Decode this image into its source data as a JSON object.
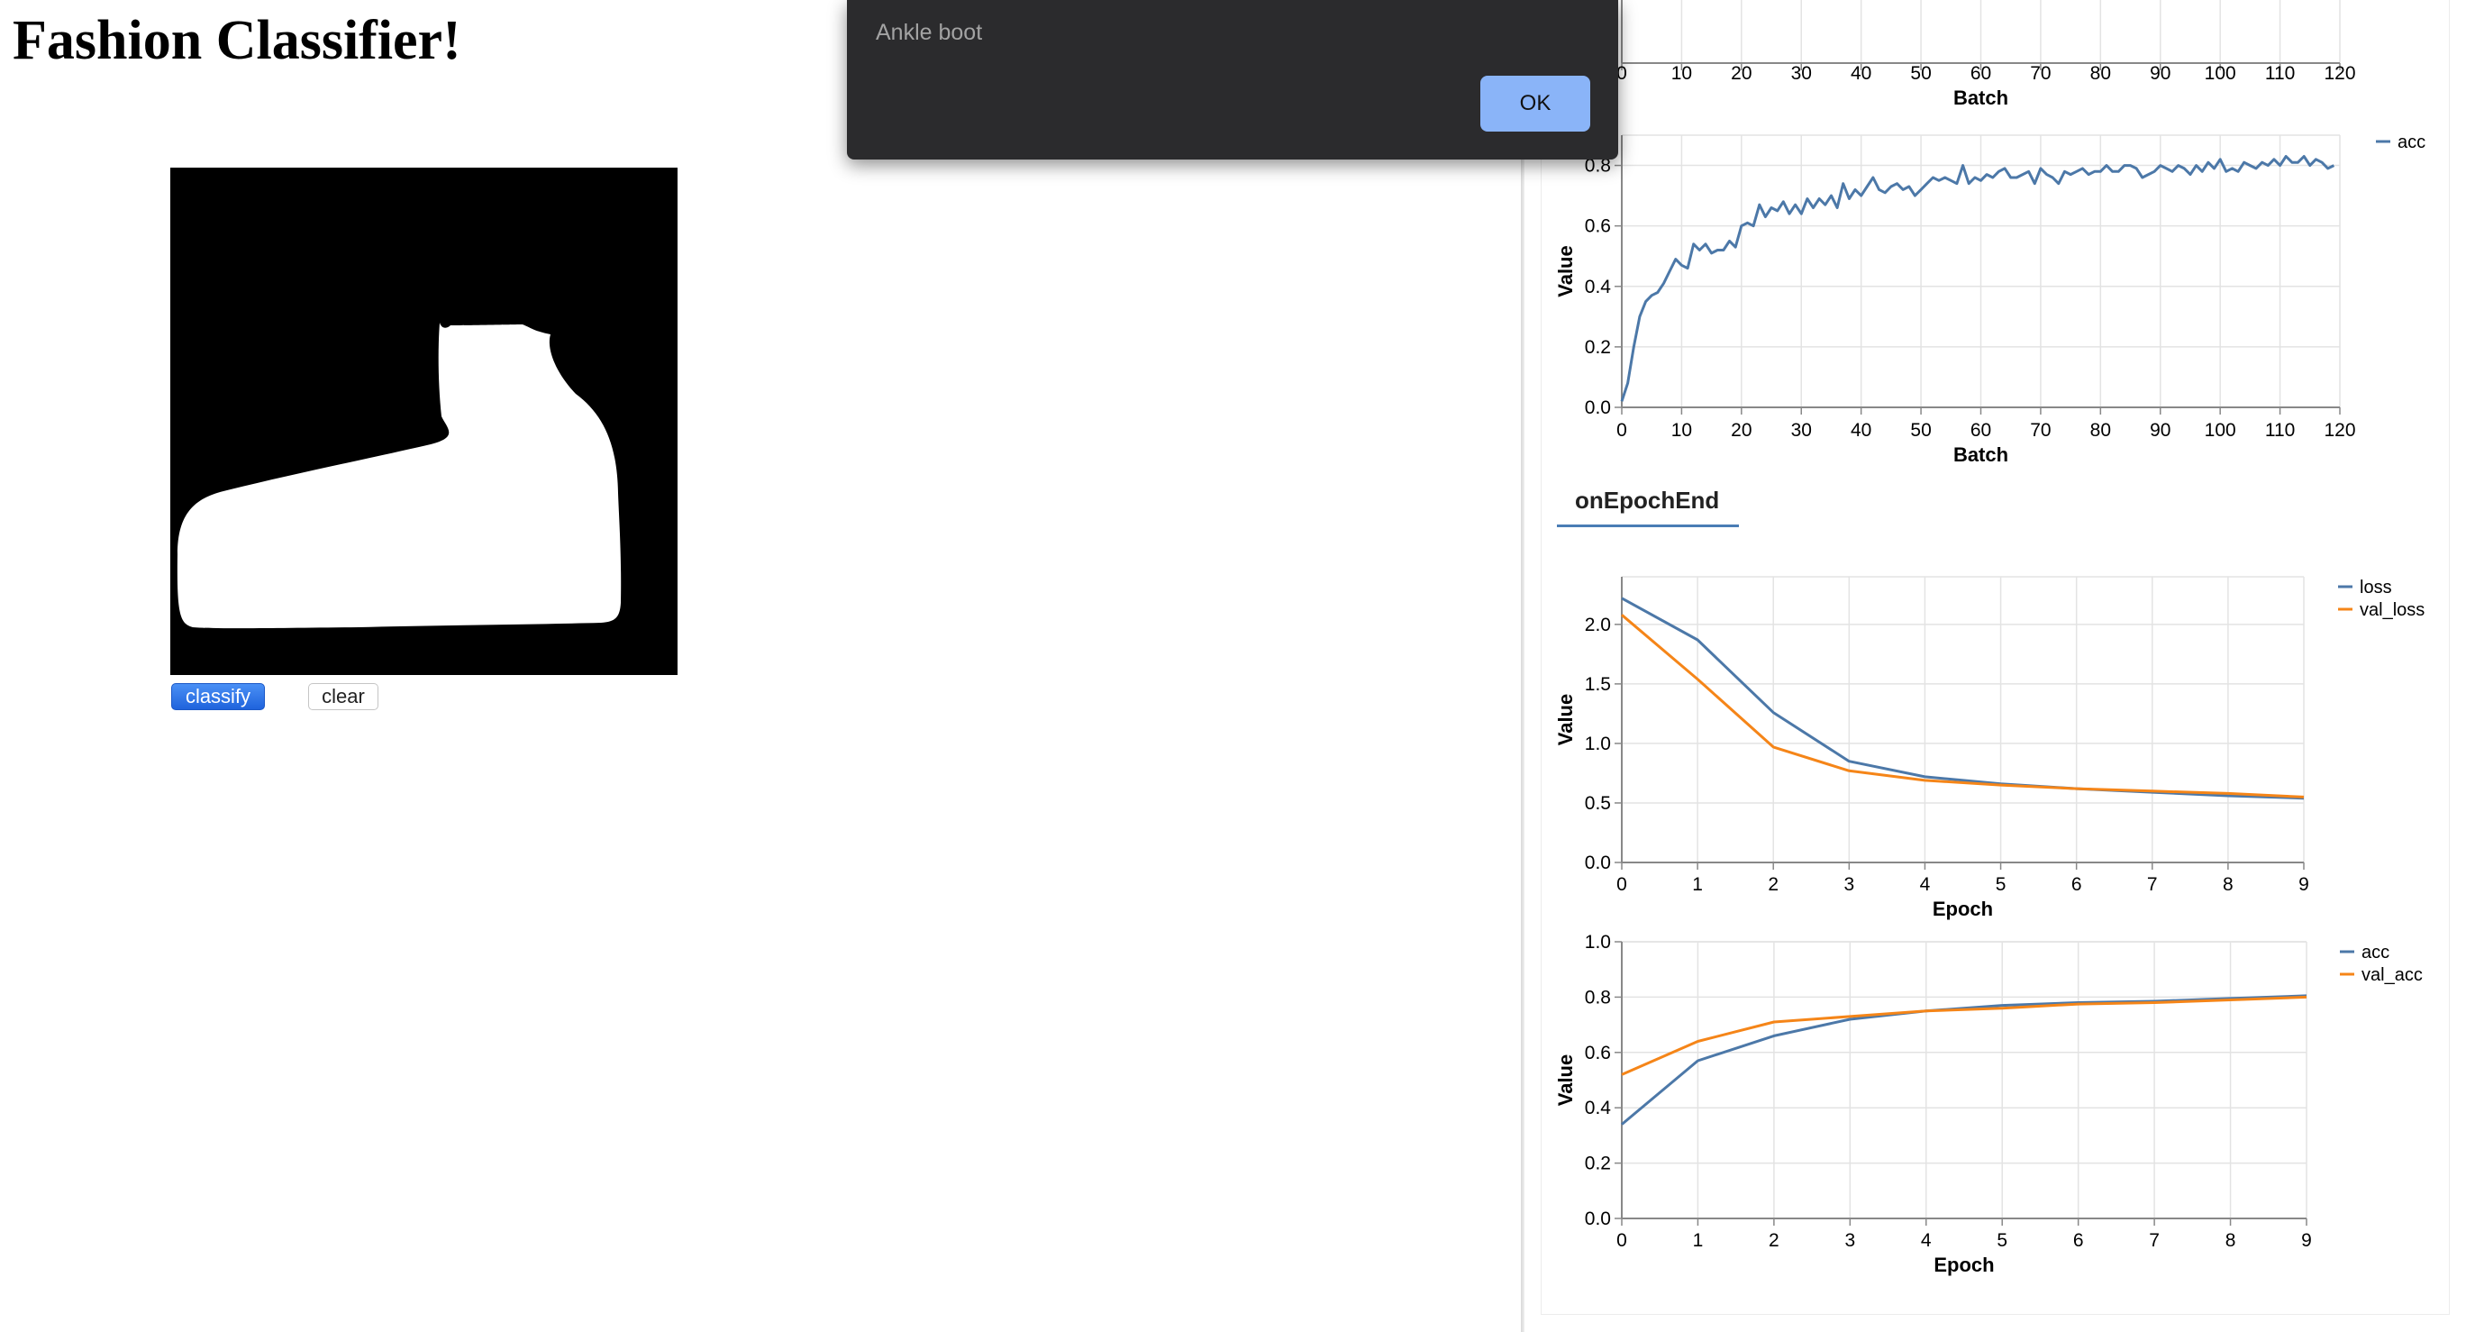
{
  "app": {
    "title": "Fashion Classifier!"
  },
  "controls": {
    "classify_label": "classify",
    "clear_label": "clear"
  },
  "alert": {
    "message": "Ankle boot",
    "ok_label": "OK"
  },
  "visor": {
    "tab_label": "onEpochEnd"
  },
  "colors": {
    "blue": "#4c78a8",
    "orange": "#f58518",
    "accent": "#8ab4f8"
  },
  "chart_data": [
    {
      "type": "line",
      "xlabel": "Batch",
      "x_ticks": [
        "0",
        "10",
        "20",
        "30",
        "40",
        "50",
        "60",
        "70",
        "80",
        "90",
        "100",
        "110",
        "120"
      ],
      "xlim": [
        0,
        120
      ],
      "note_visible": "chart cut off at top; only x axis visible"
    },
    {
      "type": "line",
      "xlabel": "Batch",
      "ylabel": "Value",
      "xlim": [
        0,
        120
      ],
      "ylim": [
        0,
        0.9
      ],
      "x_ticks": [
        "0",
        "10",
        "20",
        "30",
        "40",
        "50",
        "60",
        "70",
        "80",
        "90",
        "100",
        "110",
        "120"
      ],
      "y_ticks": [
        "0.0",
        "0.2",
        "0.4",
        "0.6",
        "0.8"
      ],
      "legend": "top-right",
      "series": [
        {
          "name": "acc",
          "x": [
            0,
            1,
            2,
            3,
            4,
            5,
            6,
            7,
            8,
            9,
            10,
            11,
            12,
            13,
            14,
            15,
            16,
            17,
            18,
            19,
            20,
            21,
            22,
            23,
            24,
            25,
            26,
            27,
            28,
            29,
            30,
            31,
            32,
            33,
            34,
            35,
            36,
            37,
            38,
            39,
            40,
            41,
            42,
            43,
            44,
            45,
            46,
            47,
            48,
            49,
            50,
            51,
            52,
            53,
            54,
            55,
            56,
            57,
            58,
            59,
            60,
            61,
            62,
            63,
            64,
            65,
            66,
            67,
            68,
            69,
            70,
            71,
            72,
            73,
            74,
            75,
            76,
            77,
            78,
            79,
            80,
            81,
            82,
            83,
            84,
            85,
            86,
            87,
            88,
            89,
            90,
            91,
            92,
            93,
            94,
            95,
            96,
            97,
            98,
            99,
            100,
            101,
            102,
            103,
            104,
            105,
            106,
            107,
            108,
            109,
            110,
            111,
            112,
            113,
            114,
            115,
            116,
            117,
            118,
            119
          ],
          "values": [
            0.02,
            0.08,
            0.2,
            0.3,
            0.35,
            0.37,
            0.38,
            0.41,
            0.45,
            0.49,
            0.47,
            0.46,
            0.54,
            0.52,
            0.54,
            0.51,
            0.52,
            0.52,
            0.55,
            0.53,
            0.6,
            0.61,
            0.6,
            0.67,
            0.63,
            0.66,
            0.65,
            0.68,
            0.64,
            0.67,
            0.64,
            0.69,
            0.66,
            0.69,
            0.67,
            0.7,
            0.66,
            0.74,
            0.69,
            0.72,
            0.7,
            0.73,
            0.76,
            0.72,
            0.71,
            0.73,
            0.74,
            0.72,
            0.73,
            0.7,
            0.72,
            0.74,
            0.76,
            0.75,
            0.76,
            0.75,
            0.74,
            0.8,
            0.74,
            0.76,
            0.75,
            0.77,
            0.76,
            0.78,
            0.79,
            0.76,
            0.76,
            0.77,
            0.78,
            0.74,
            0.79,
            0.77,
            0.76,
            0.74,
            0.78,
            0.77,
            0.78,
            0.79,
            0.77,
            0.78,
            0.78,
            0.8,
            0.78,
            0.78,
            0.8,
            0.8,
            0.79,
            0.76,
            0.77,
            0.78,
            0.8,
            0.79,
            0.78,
            0.8,
            0.79,
            0.77,
            0.8,
            0.78,
            0.81,
            0.79,
            0.82,
            0.78,
            0.79,
            0.78,
            0.81,
            0.8,
            0.79,
            0.81,
            0.8,
            0.82,
            0.8,
            0.83,
            0.81,
            0.81,
            0.83,
            0.8,
            0.82,
            0.81,
            0.79,
            0.8
          ]
        }
      ]
    },
    {
      "type": "line",
      "xlabel": "Epoch",
      "ylabel": "Value",
      "xlim": [
        0,
        9
      ],
      "ylim": [
        0,
        2.4
      ],
      "x_ticks": [
        "0",
        "1",
        "2",
        "3",
        "4",
        "5",
        "6",
        "7",
        "8",
        "9"
      ],
      "y_ticks": [
        "0.0",
        "0.5",
        "1.0",
        "1.5",
        "2.0"
      ],
      "legend": "top-right",
      "x": [
        0,
        1,
        2,
        3,
        4,
        5,
        6,
        7,
        8,
        9
      ],
      "series": [
        {
          "name": "loss",
          "values": [
            2.22,
            1.87,
            1.26,
            0.85,
            0.72,
            0.66,
            0.62,
            0.59,
            0.56,
            0.54
          ]
        },
        {
          "name": "val_loss",
          "values": [
            2.08,
            1.54,
            0.97,
            0.77,
            0.69,
            0.65,
            0.62,
            0.6,
            0.58,
            0.55
          ]
        }
      ]
    },
    {
      "type": "line",
      "xlabel": "Epoch",
      "ylabel": "Value",
      "xlim": [
        0,
        9
      ],
      "ylim": [
        0,
        1.0
      ],
      "x_ticks": [
        "0",
        "1",
        "2",
        "3",
        "4",
        "5",
        "6",
        "7",
        "8",
        "9"
      ],
      "y_ticks": [
        "0.0",
        "0.2",
        "0.4",
        "0.6",
        "0.8",
        "1.0"
      ],
      "legend": "top-right",
      "x": [
        0,
        1,
        2,
        3,
        4,
        5,
        6,
        7,
        8,
        9
      ],
      "series": [
        {
          "name": "acc",
          "values": [
            0.34,
            0.57,
            0.66,
            0.72,
            0.75,
            0.77,
            0.78,
            0.785,
            0.795,
            0.805
          ]
        },
        {
          "name": "val_acc",
          "values": [
            0.52,
            0.64,
            0.71,
            0.73,
            0.75,
            0.76,
            0.775,
            0.78,
            0.79,
            0.8
          ]
        }
      ]
    }
  ]
}
